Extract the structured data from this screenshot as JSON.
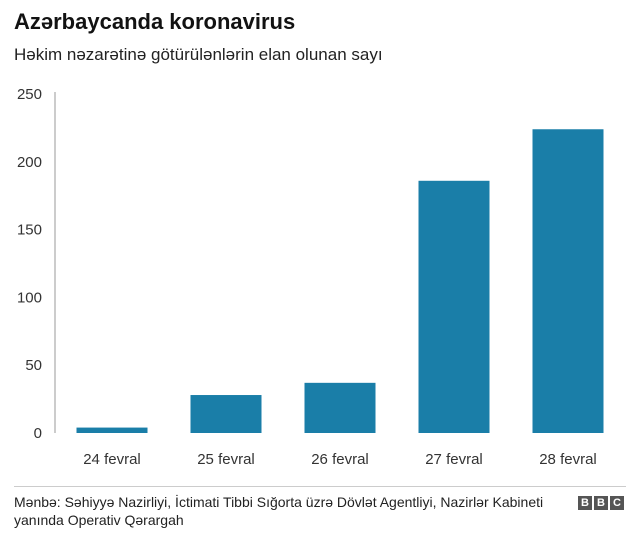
{
  "header": {
    "title": "Azərbaycanda koronavirus",
    "subtitle": "Həkim nəzarətinə götürülənlərin elan olunan sayı"
  },
  "footer": {
    "source": "Mənbə: Səhiyyə Nazirliyi, İctimati Tibbi Sığorta üzrə Dövlət Agentliyi, Nazirlər Kabineti yanında Operativ Qərargah",
    "logo_letters": [
      "B",
      "B",
      "C"
    ]
  },
  "colors": {
    "bar": "#1a7ea8",
    "axis": "#999999",
    "logo": "#555555"
  },
  "chart_data": {
    "type": "bar",
    "categories": [
      "24 fevral",
      "25 fevral",
      "26 fevral",
      "27 fevral",
      "28 fevral"
    ],
    "values": [
      4,
      28,
      37,
      186,
      224
    ],
    "title": "Azərbaycanda koronavirus",
    "subtitle": "Həkim nəzarətinə götürülənlərin elan olunan sayı",
    "xlabel": "",
    "ylabel": "",
    "ylim": [
      0,
      250
    ],
    "yticks": [
      0,
      50,
      100,
      150,
      200,
      250
    ],
    "grid": false
  }
}
